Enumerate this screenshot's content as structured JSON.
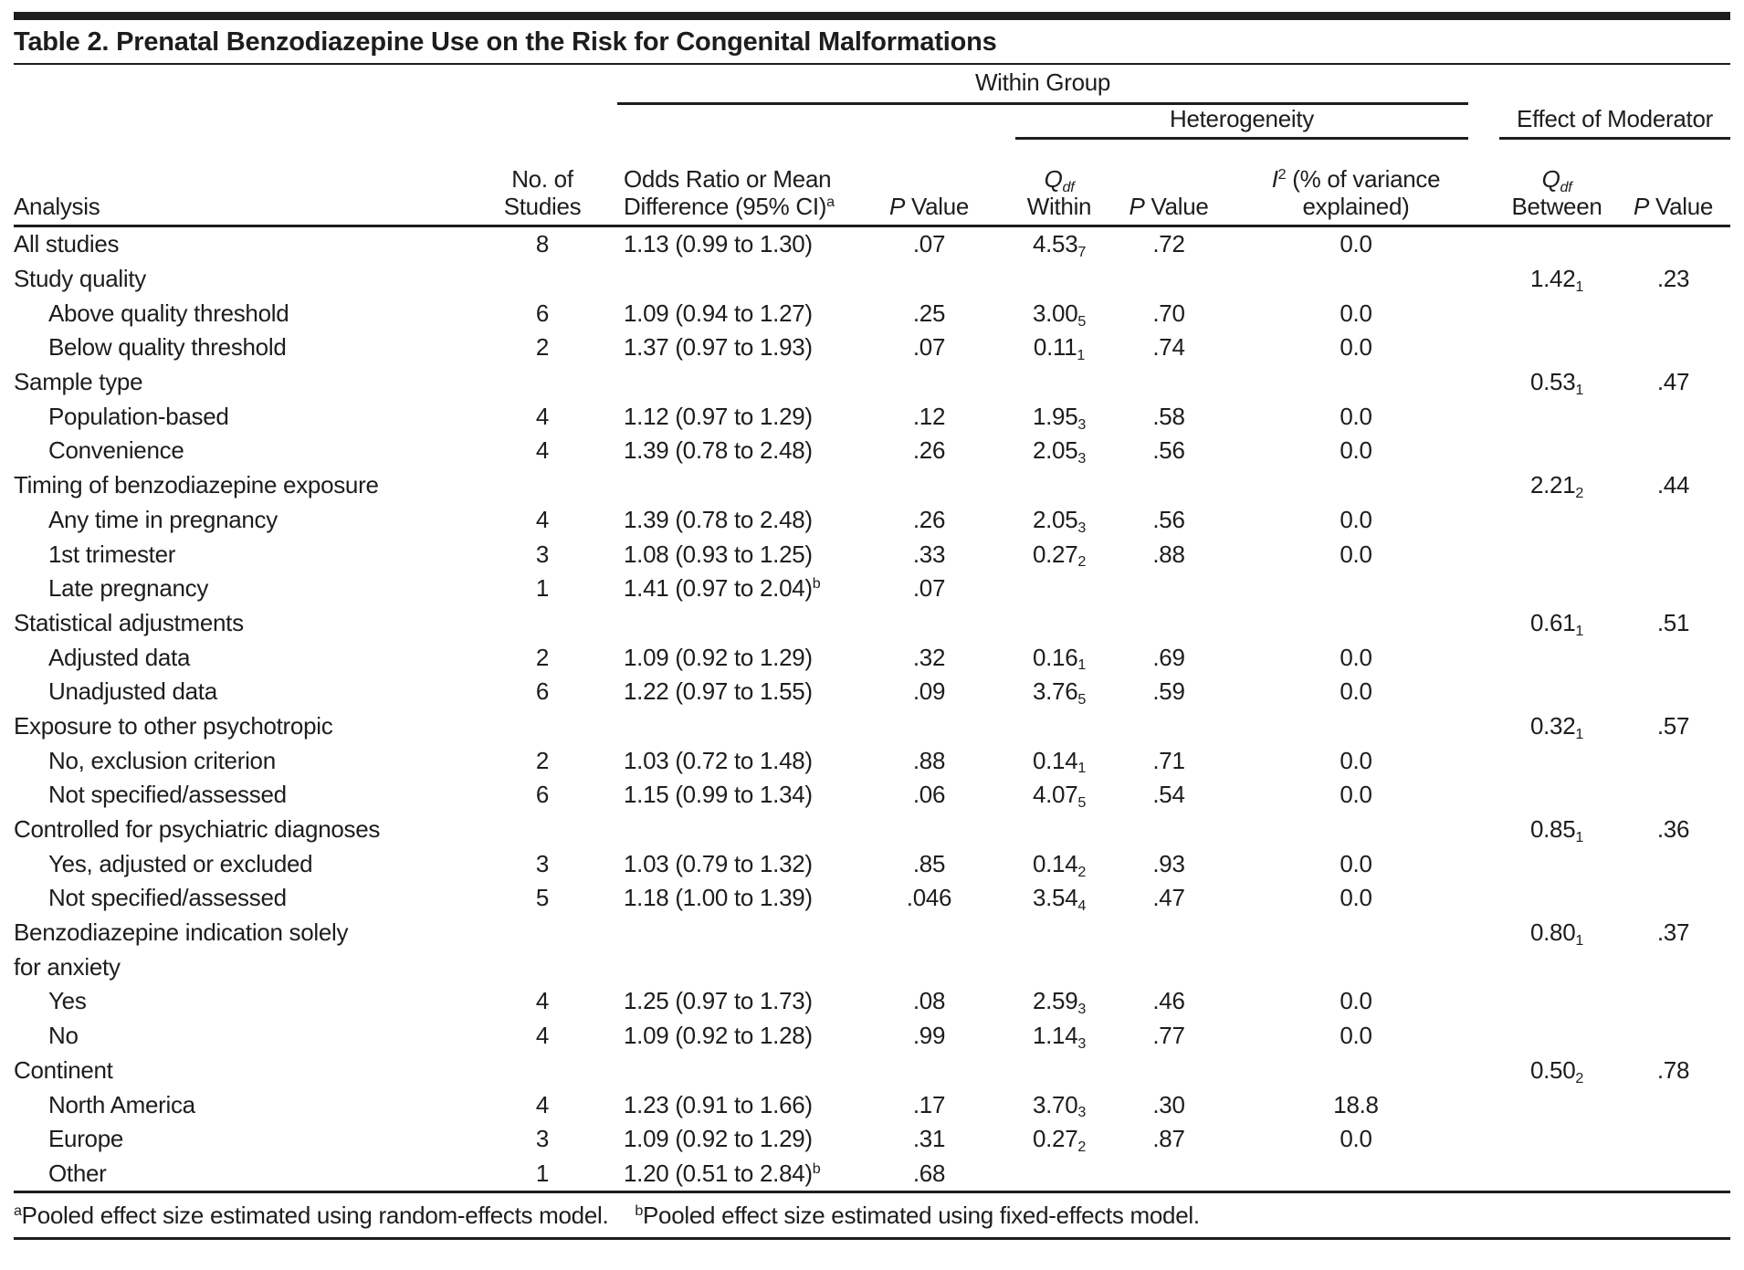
{
  "title": "Table 2. Prenatal Benzodiazepine Use on the Risk for Congenital Malformations",
  "header": {
    "spanners": {
      "within_group": "Within Group",
      "heterogeneity": "Heterogeneity",
      "effect_of_moderator": "Effect of Moderator"
    },
    "columns": {
      "analysis": "Analysis",
      "studies_line1": "No. of",
      "studies_line2": "Studies",
      "or_line1": "Odds Ratio or Mean",
      "or_line2": "Difference (95% CI)",
      "or_sup": "a",
      "p": "P",
      "value": "Value",
      "q": "Q",
      "df": "df",
      "within": "Within",
      "between": "Between",
      "i": "I",
      "i_sup": "2",
      "variance_line1": "(% of variance",
      "variance_line2": "explained)"
    }
  },
  "table": {
    "rows": [
      {
        "label": "All studies",
        "indent": 0,
        "n": "8",
        "or": "1.13 (0.99 to 1.30)",
        "or_sup": "",
        "p1": ".07",
        "qw": "4.53",
        "qw_df": "7",
        "p2": ".72",
        "i2": "0.0",
        "qb": "",
        "qb_df": "",
        "p3": ""
      },
      {
        "label": "Study quality",
        "indent": 0,
        "n": "",
        "or": "",
        "or_sup": "",
        "p1": "",
        "qw": "",
        "qw_df": "",
        "p2": "",
        "i2": "",
        "qb": "1.42",
        "qb_df": "1",
        "p3": ".23"
      },
      {
        "label": "Above quality threshold",
        "indent": 1,
        "n": "6",
        "or": "1.09 (0.94 to 1.27)",
        "or_sup": "",
        "p1": ".25",
        "qw": "3.00",
        "qw_df": "5",
        "p2": ".70",
        "i2": "0.0",
        "qb": "",
        "qb_df": "",
        "p3": ""
      },
      {
        "label": "Below quality threshold",
        "indent": 1,
        "n": "2",
        "or": "1.37 (0.97 to 1.93)",
        "or_sup": "",
        "p1": ".07",
        "qw": "0.11",
        "qw_df": "1",
        "p2": ".74",
        "i2": "0.0",
        "qb": "",
        "qb_df": "",
        "p3": ""
      },
      {
        "label": "Sample type",
        "indent": 0,
        "n": "",
        "or": "",
        "or_sup": "",
        "p1": "",
        "qw": "",
        "qw_df": "",
        "p2": "",
        "i2": "",
        "qb": "0.53",
        "qb_df": "1",
        "p3": ".47"
      },
      {
        "label": "Population-based",
        "indent": 1,
        "n": "4",
        "or": "1.12 (0.97 to 1.29)",
        "or_sup": "",
        "p1": ".12",
        "qw": "1.95",
        "qw_df": "3",
        "p2": ".58",
        "i2": "0.0",
        "qb": "",
        "qb_df": "",
        "p3": ""
      },
      {
        "label": "Convenience",
        "indent": 1,
        "n": "4",
        "or": "1.39 (0.78 to 2.48)",
        "or_sup": "",
        "p1": ".26",
        "qw": "2.05",
        "qw_df": "3",
        "p2": ".56",
        "i2": "0.0",
        "qb": "",
        "qb_df": "",
        "p3": ""
      },
      {
        "label": "Timing of benzodiazepine exposure",
        "indent": 0,
        "n": "",
        "or": "",
        "or_sup": "",
        "p1": "",
        "qw": "",
        "qw_df": "",
        "p2": "",
        "i2": "",
        "qb": "2.21",
        "qb_df": "2",
        "p3": ".44"
      },
      {
        "label": "Any time in pregnancy",
        "indent": 1,
        "n": "4",
        "or": "1.39 (0.78 to 2.48)",
        "or_sup": "",
        "p1": ".26",
        "qw": "2.05",
        "qw_df": "3",
        "p2": ".56",
        "i2": "0.0",
        "qb": "",
        "qb_df": "",
        "p3": ""
      },
      {
        "label": "1st trimester",
        "indent": 1,
        "n": "3",
        "or": "1.08 (0.93 to 1.25)",
        "or_sup": "",
        "p1": ".33",
        "qw": "0.27",
        "qw_df": "2",
        "p2": ".88",
        "i2": "0.0",
        "qb": "",
        "qb_df": "",
        "p3": ""
      },
      {
        "label": "Late pregnancy",
        "indent": 1,
        "n": "1",
        "or": "1.41 (0.97 to 2.04)",
        "or_sup": "b",
        "p1": ".07",
        "qw": "",
        "qw_df": "",
        "p2": "",
        "i2": "",
        "qb": "",
        "qb_df": "",
        "p3": ""
      },
      {
        "label": "Statistical adjustments",
        "indent": 0,
        "n": "",
        "or": "",
        "or_sup": "",
        "p1": "",
        "qw": "",
        "qw_df": "",
        "p2": "",
        "i2": "",
        "qb": "0.61",
        "qb_df": "1",
        "p3": ".51"
      },
      {
        "label": "Adjusted data",
        "indent": 1,
        "n": "2",
        "or": "1.09 (0.92 to 1.29)",
        "or_sup": "",
        "p1": ".32",
        "qw": "0.16",
        "qw_df": "1",
        "p2": ".69",
        "i2": "0.0",
        "qb": "",
        "qb_df": "",
        "p3": ""
      },
      {
        "label": "Unadjusted data",
        "indent": 1,
        "n": "6",
        "or": "1.22 (0.97 to 1.55)",
        "or_sup": "",
        "p1": ".09",
        "qw": "3.76",
        "qw_df": "5",
        "p2": ".59",
        "i2": "0.0",
        "qb": "",
        "qb_df": "",
        "p3": ""
      },
      {
        "label": "Exposure to other psychotropic",
        "indent": 0,
        "n": "",
        "or": "",
        "or_sup": "",
        "p1": "",
        "qw": "",
        "qw_df": "",
        "p2": "",
        "i2": "",
        "qb": "0.32",
        "qb_df": "1",
        "p3": ".57"
      },
      {
        "label": "No, exclusion criterion",
        "indent": 1,
        "n": "2",
        "or": "1.03 (0.72 to 1.48)",
        "or_sup": "",
        "p1": ".88",
        "qw": "0.14",
        "qw_df": "1",
        "p2": ".71",
        "i2": "0.0",
        "qb": "",
        "qb_df": "",
        "p3": ""
      },
      {
        "label": "Not specified/assessed",
        "indent": 1,
        "n": "6",
        "or": "1.15 (0.99 to 1.34)",
        "or_sup": "",
        "p1": ".06",
        "qw": "4.07",
        "qw_df": "5",
        "p2": ".54",
        "i2": "0.0",
        "qb": "",
        "qb_df": "",
        "p3": ""
      },
      {
        "label": "Controlled for psychiatric diagnoses",
        "indent": 0,
        "n": "",
        "or": "",
        "or_sup": "",
        "p1": "",
        "qw": "",
        "qw_df": "",
        "p2": "",
        "i2": "",
        "qb": "0.85",
        "qb_df": "1",
        "p3": ".36"
      },
      {
        "label": "Yes, adjusted or excluded",
        "indent": 1,
        "n": "3",
        "or": "1.03 (0.79 to 1.32)",
        "or_sup": "",
        "p1": ".85",
        "qw": "0.14",
        "qw_df": "2",
        "p2": ".93",
        "i2": "0.0",
        "qb": "",
        "qb_df": "",
        "p3": ""
      },
      {
        "label": "Not specified/assessed",
        "indent": 1,
        "n": "5",
        "or": "1.18 (1.00 to 1.39)",
        "or_sup": "",
        "p1": ".046",
        "qw": "3.54",
        "qw_df": "4",
        "p2": ".47",
        "i2": "0.0",
        "qb": "",
        "qb_df": "",
        "p3": ""
      },
      {
        "label": "Benzodiazepine indication solely",
        "indent": 0,
        "n": "",
        "or": "",
        "or_sup": "",
        "p1": "",
        "qw": "",
        "qw_df": "",
        "p2": "",
        "i2": "",
        "qb": "0.80",
        "qb_df": "1",
        "p3": ".37"
      },
      {
        "label": "for anxiety",
        "indent": 0,
        "n": "",
        "or": "",
        "or_sup": "",
        "p1": "",
        "qw": "",
        "qw_df": "",
        "p2": "",
        "i2": "",
        "qb": "",
        "qb_df": "",
        "p3": ""
      },
      {
        "label": "Yes",
        "indent": 1,
        "n": "4",
        "or": "1.25 (0.97 to 1.73)",
        "or_sup": "",
        "p1": ".08",
        "qw": "2.59",
        "qw_df": "3",
        "p2": ".46",
        "i2": "0.0",
        "qb": "",
        "qb_df": "",
        "p3": ""
      },
      {
        "label": "No",
        "indent": 1,
        "n": "4",
        "or": "1.09 (0.92 to 1.28)",
        "or_sup": "",
        "p1": ".99",
        "qw": "1.14",
        "qw_df": "3",
        "p2": ".77",
        "i2": "0.0",
        "qb": "",
        "qb_df": "",
        "p3": ""
      },
      {
        "label": "Continent",
        "indent": 0,
        "n": "",
        "or": "",
        "or_sup": "",
        "p1": "",
        "qw": "",
        "qw_df": "",
        "p2": "",
        "i2": "",
        "qb": "0.50",
        "qb_df": "2",
        "p3": ".78"
      },
      {
        "label": "North America",
        "indent": 1,
        "n": "4",
        "or": "1.23 (0.91 to 1.66)",
        "or_sup": "",
        "p1": ".17",
        "qw": "3.70",
        "qw_df": "3",
        "p2": ".30",
        "i2": "18.8",
        "qb": "",
        "qb_df": "",
        "p3": ""
      },
      {
        "label": "Europe",
        "indent": 1,
        "n": "3",
        "or": "1.09 (0.92 to 1.29)",
        "or_sup": "",
        "p1": ".31",
        "qw": "0.27",
        "qw_df": "2",
        "p2": ".87",
        "i2": "0.0",
        "qb": "",
        "qb_df": "",
        "p3": ""
      },
      {
        "label": "Other",
        "indent": 1,
        "n": "1",
        "or": "1.20 (0.51 to 2.84)",
        "or_sup": "b",
        "p1": ".68",
        "qw": "",
        "qw_df": "",
        "p2": "",
        "i2": "",
        "qb": "",
        "qb_df": "",
        "p3": ""
      }
    ]
  },
  "footnotes": [
    {
      "sup": "a",
      "text": "Pooled effect size estimated using random-effects model."
    },
    {
      "sup": "b",
      "text": "Pooled effect size estimated using fixed-effects model."
    }
  ],
  "colors": {
    "ink": "#1d1d1d",
    "background": "#ffffff"
  }
}
